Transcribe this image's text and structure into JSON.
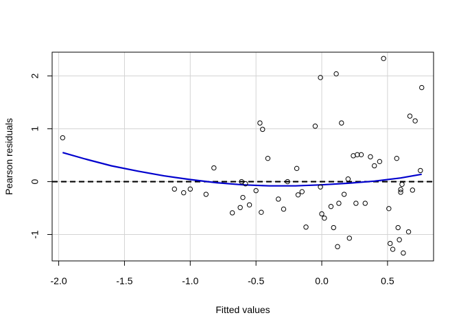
{
  "chart_data": {
    "type": "scatter",
    "title": "",
    "xlabel": "Fitted values",
    "ylabel": "Pearson residuals",
    "xlim": [
      -2.05,
      0.85
    ],
    "ylim": [
      -1.5,
      2.45
    ],
    "xticks": [
      -2.0,
      -1.5,
      -1.0,
      -0.5,
      0.0,
      0.5
    ],
    "xtick_labels": [
      "-2.0",
      "-1.5",
      "-1.0",
      "-0.5",
      "0.0",
      "0.5"
    ],
    "yticks": [
      -1,
      0,
      1,
      2
    ],
    "ytick_labels": [
      "-1",
      "0",
      "1",
      "2"
    ],
    "grid": true,
    "reference_line": {
      "y": 0,
      "style": "dashed",
      "color": "#000000"
    },
    "colors": {
      "points": "#000000",
      "smooth": "#0000cd",
      "grid": "#d3d3d3"
    },
    "points": [
      [
        -1.97,
        0.83
      ],
      [
        -1.12,
        -0.14
      ],
      [
        -1.05,
        -0.21
      ],
      [
        -1.0,
        -0.14
      ],
      [
        -0.88,
        -0.24
      ],
      [
        -0.82,
        0.26
      ],
      [
        -0.68,
        -0.59
      ],
      [
        -0.62,
        -0.49
      ],
      [
        -0.61,
        0.0
      ],
      [
        -0.6,
        -0.3
      ],
      [
        -0.58,
        -0.04
      ],
      [
        -0.55,
        -0.44
      ],
      [
        -0.5,
        -0.17
      ],
      [
        -0.47,
        1.11
      ],
      [
        -0.46,
        -0.58
      ],
      [
        -0.45,
        0.99
      ],
      [
        -0.41,
        0.44
      ],
      [
        -0.33,
        -0.33
      ],
      [
        -0.29,
        -0.52
      ],
      [
        -0.26,
        0.0
      ],
      [
        -0.19,
        0.25
      ],
      [
        -0.18,
        -0.25
      ],
      [
        -0.15,
        -0.19
      ],
      [
        -0.12,
        -0.86
      ],
      [
        -0.05,
        1.05
      ],
      [
        -0.01,
        1.97
      ],
      [
        -0.01,
        -0.1
      ],
      [
        0.0,
        -0.61
      ],
      [
        0.02,
        -0.69
      ],
      [
        0.07,
        -0.47
      ],
      [
        0.09,
        -0.87
      ],
      [
        0.11,
        2.04
      ],
      [
        0.12,
        -1.23
      ],
      [
        0.13,
        -0.41
      ],
      [
        0.15,
        1.11
      ],
      [
        0.17,
        -0.24
      ],
      [
        0.2,
        0.05
      ],
      [
        0.21,
        -1.07
      ],
      [
        0.24,
        0.49
      ],
      [
        0.26,
        -0.41
      ],
      [
        0.27,
        0.51
      ],
      [
        0.3,
        0.51
      ],
      [
        0.33,
        -0.41
      ],
      [
        0.37,
        0.47
      ],
      [
        0.4,
        0.3
      ],
      [
        0.44,
        0.38
      ],
      [
        0.47,
        2.33
      ],
      [
        0.51,
        -0.51
      ],
      [
        0.52,
        -1.17
      ],
      [
        0.54,
        -1.28
      ],
      [
        0.57,
        0.44
      ],
      [
        0.58,
        -0.87
      ],
      [
        0.59,
        -1.1
      ],
      [
        0.6,
        -0.2
      ],
      [
        0.6,
        -0.15
      ],
      [
        0.61,
        -0.05
      ],
      [
        0.62,
        -1.35
      ],
      [
        0.66,
        -0.95
      ],
      [
        0.67,
        1.24
      ],
      [
        0.69,
        -0.16
      ],
      [
        0.71,
        1.15
      ],
      [
        0.75,
        0.21
      ],
      [
        0.76,
        1.78
      ]
    ],
    "smooth_line": [
      [
        -1.97,
        0.55
      ],
      [
        -1.8,
        0.43
      ],
      [
        -1.6,
        0.3
      ],
      [
        -1.4,
        0.2
      ],
      [
        -1.2,
        0.11
      ],
      [
        -1.0,
        0.04
      ],
      [
        -0.8,
        -0.02
      ],
      [
        -0.6,
        -0.06
      ],
      [
        -0.4,
        -0.08
      ],
      [
        -0.2,
        -0.08
      ],
      [
        0.0,
        -0.06
      ],
      [
        0.2,
        -0.03
      ],
      [
        0.4,
        0.01
      ],
      [
        0.6,
        0.07
      ],
      [
        0.76,
        0.14
      ]
    ]
  }
}
